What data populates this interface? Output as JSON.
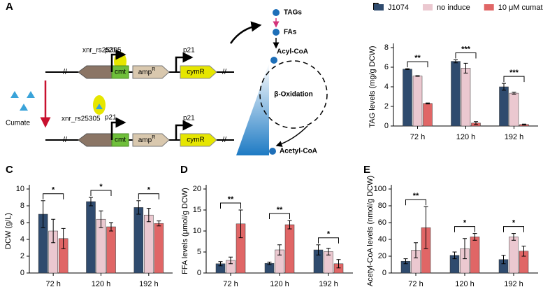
{
  "diagram": {
    "label": "A",
    "constructs": [
      {
        "locus": "xnr_rs25305",
        "promoters": [
          "p21",
          "p21"
        ],
        "genes": [
          "cmt",
          "amp",
          "cymR"
        ],
        "amp_sup": "R"
      },
      {
        "locus": "xnr_rs25305",
        "promoters": [
          "p21",
          "p21"
        ],
        "genes": [
          "cmt",
          "amp",
          "cymR"
        ],
        "amp_sup": "R"
      }
    ],
    "inducer": "Cumate",
    "pathway": [
      "TAGs",
      "FAs",
      "Acyl-CoA",
      "Acetyl-CoA"
    ],
    "cycle": "β-Oxidation"
  },
  "chart_data": [
    {
      "type": "bar",
      "label": "B",
      "y_label": "TAG levels  (mg/g DCW)",
      "categories": [
        "72 h",
        "120 h",
        "192 h"
      ],
      "series": [
        {
          "name": "J1074",
          "color": "#2f4b6e",
          "values": [
            5.8,
            6.6,
            4.0
          ],
          "errors": [
            0.05,
            0.15,
            0.35
          ]
        },
        {
          "name": "no induce",
          "color": "#ebc8d0",
          "values": [
            5.1,
            5.9,
            3.35
          ],
          "errors": [
            0.03,
            0.5,
            0.1
          ]
        },
        {
          "name": "10 μM cumate",
          "color": "#e06666",
          "values": [
            2.3,
            0.3,
            0.15
          ],
          "errors": [
            0.05,
            0.15,
            0.05
          ]
        }
      ],
      "significance": [
        "**",
        "***",
        "***"
      ],
      "legend": "top",
      "ylim": [
        0,
        8
      ],
      "yticks": [
        0,
        2,
        4,
        6,
        8
      ]
    },
    {
      "type": "bar",
      "label": "C",
      "y_label": "DCW (g/L)",
      "categories": [
        "72 h",
        "120 h",
        "192 h"
      ],
      "series": [
        {
          "color": "#2f4b6e",
          "values": [
            7.0,
            8.5,
            7.8
          ],
          "errors": [
            1.6,
            0.5,
            0.8
          ]
        },
        {
          "color": "#ebc8d0",
          "values": [
            5.0,
            6.4,
            6.9
          ],
          "errors": [
            1.4,
            1.0,
            0.8
          ]
        },
        {
          "color": "#e06666",
          "values": [
            4.1,
            5.5,
            5.9
          ],
          "errors": [
            1.2,
            0.5,
            0.3
          ]
        }
      ],
      "significance": [
        "*",
        "*",
        "*"
      ],
      "ylim": [
        0,
        10
      ],
      "yticks": [
        0,
        2,
        4,
        6,
        8,
        10
      ]
    },
    {
      "type": "bar",
      "label": "D",
      "y_label": "FFA  levels (μmol/g DCW)",
      "categories": [
        "72 h",
        "120 h",
        "192 h"
      ],
      "series": [
        {
          "color": "#2f4b6e",
          "values": [
            2.2,
            2.3,
            5.5
          ],
          "errors": [
            0.5,
            0.3,
            1.2
          ]
        },
        {
          "color": "#ebc8d0",
          "values": [
            3.0,
            5.5,
            5.1
          ],
          "errors": [
            0.8,
            1.2,
            0.8
          ]
        },
        {
          "color": "#e06666",
          "values": [
            11.7,
            11.5,
            2.2
          ],
          "errors": [
            3.3,
            1.0,
            1.0
          ]
        }
      ],
      "significance": [
        "**",
        "**",
        "*"
      ],
      "ylim": [
        0,
        20
      ],
      "yticks": [
        0,
        5,
        10,
        15,
        20
      ]
    },
    {
      "type": "bar",
      "label": "E",
      "y_label": "Acetyl-CoA levels (nmol/g DCW)",
      "categories": [
        "72 h",
        "120 h",
        "192 h"
      ],
      "series": [
        {
          "color": "#2f4b6e",
          "values": [
            14,
            21,
            16
          ],
          "errors": [
            3,
            4,
            5
          ]
        },
        {
          "color": "#ebc8d0",
          "values": [
            27,
            29,
            43
          ],
          "errors": [
            9,
            12,
            4
          ]
        },
        {
          "color": "#e06666",
          "values": [
            54,
            43,
            26
          ],
          "errors": [
            25,
            4,
            6
          ]
        }
      ],
      "significance": [
        "**",
        "*",
        "*"
      ],
      "ylim": [
        0,
        100
      ],
      "yticks": [
        0,
        20,
        40,
        60,
        80,
        100
      ]
    }
  ]
}
